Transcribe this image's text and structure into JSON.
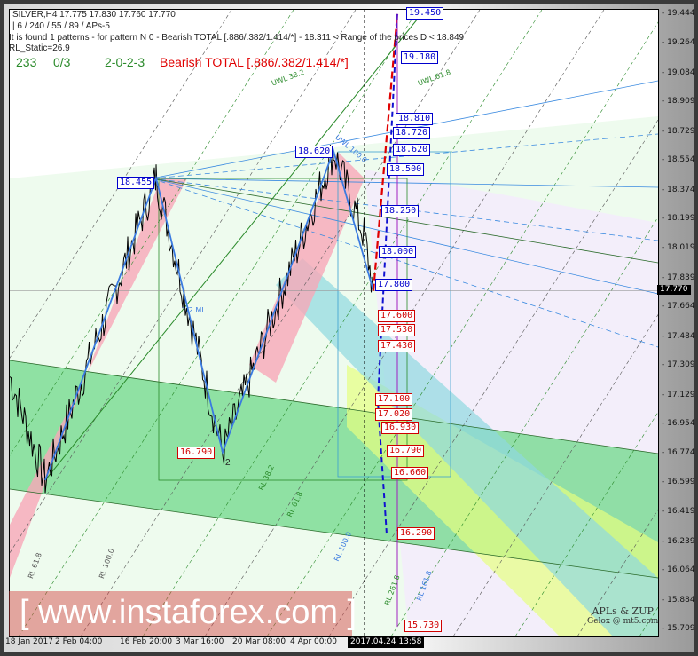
{
  "header": {
    "symbol_line": "SILVER,H4  17.775 17.830 17.760 17.770",
    "params": "| 6 / 240 / 55 / 89 / APs-5",
    "pattern_info": "It is found 1 patterns  -  for pattern N 0 - Bearish TOTAL [.886/.382/1.414/*] - 18.311 < Range of the prices D < 18.849",
    "rl_static": "RL_Static=26.9",
    "stat1": "233",
    "stat2": "0/3",
    "stat3": "2-0-2-3",
    "pattern_name": "Bearish TOTAL [.886/.382/1.414/*]"
  },
  "colors": {
    "bearish": "#e00000",
    "green": "#2a8a2a",
    "blue_levels": "#0000cc",
    "red_levels": "#d00000",
    "green_zone": "#6fd88a",
    "pink_zone": "#f7a8b8",
    "cyan_zone": "#8fd8e0",
    "yellow_zone": "#e6ff80"
  },
  "chart_data": {
    "type": "line",
    "title": "SILVER,H4",
    "ohlc": {
      "open": 17.775,
      "high": 17.83,
      "low": 17.76,
      "close": 17.77
    },
    "current_price": "17.770",
    "cursor_time": "2017.04.24 13:58",
    "ylim": [
      15.709,
      19.444
    ],
    "y_ticks": [
      "19.444",
      "19.264",
      "19.084",
      "18.909",
      "18.729",
      "18.554",
      "18.374",
      "18.199",
      "18.019",
      "17.839",
      "17.664",
      "17.484",
      "17.309",
      "17.129",
      "16.954",
      "16.774",
      "16.599",
      "16.419",
      "16.239",
      "16.064",
      "15.884",
      "15.709"
    ],
    "x_ticks": [
      "18 Jan 2017",
      "2 Feb 04:00",
      "16 Feb 20:00",
      "3 Mar 16:00",
      "20 Mar 08:00",
      "4 Apr 00:00"
    ],
    "pivots": [
      {
        "label": "",
        "price": 17.25
      },
      {
        "label": "",
        "price": 16.62
      },
      {
        "label": "18.455",
        "price": 18.455
      },
      {
        "label": "16.790",
        "price": 16.79
      },
      {
        "label": "18.620",
        "price": 18.62
      },
      {
        "label": "",
        "price": 17.77
      }
    ],
    "pivot_labels": [
      "18.455",
      "16.790",
      "18.620"
    ],
    "point_label_2": "2",
    "blue_levels": [
      "19.450",
      "19.180",
      "18.810",
      "18.720",
      "18.620",
      "18.500",
      "18.250",
      "18.000",
      "17.800"
    ],
    "red_levels": [
      "17.600",
      "17.530",
      "17.430",
      "17.100",
      "17.020",
      "16.930",
      "16.790",
      "16.660",
      "16.290",
      "15.730"
    ],
    "annotations": [
      "UWL 61.8",
      "UWL 38.2",
      "1/2 ML",
      "UWL 100.0",
      "RL 38.2",
      "RL 61.8",
      "RL 100.0",
      "RL 161.8",
      "RL 261.8",
      "RL 61.8",
      "RL 100.0"
    ]
  },
  "watermark": "[ www.instaforex.com ]",
  "signature": {
    "line1": "APLs & ZUP",
    "line2": "Gelox @ mt5.com"
  }
}
